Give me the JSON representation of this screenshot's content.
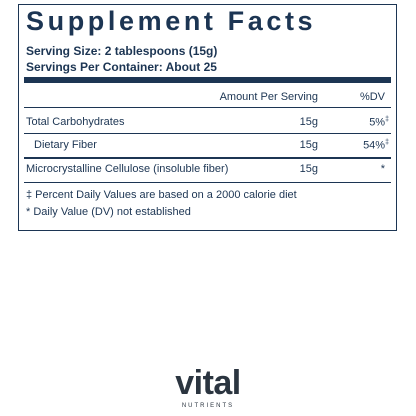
{
  "header": {
    "title": "Supplement Facts",
    "serving_size": "Serving Size: 2 tablespoons (15g)",
    "servings_per_container": "Servings Per Container: About 25"
  },
  "table": {
    "columns": [
      "Amount Per Serving",
      "%DV"
    ],
    "rows": [
      {
        "name": "Total Carbohydrates",
        "amount": "15g",
        "dv": "5%",
        "dv_note": "‡"
      },
      {
        "name": "Dietary Fiber",
        "amount": "15g",
        "dv": "54%",
        "dv_note": "‡"
      },
      {
        "name": "Microcrystalline Cellulose (insoluble fiber)",
        "amount": "15g",
        "dv": "*"
      }
    ]
  },
  "footnotes": [
    "‡ Percent Daily Values are based on a 2000 calorie diet",
    "* Daily Value (DV) not established"
  ],
  "logo": {
    "name": "vital",
    "subtitle": "NUTRIENTS"
  }
}
